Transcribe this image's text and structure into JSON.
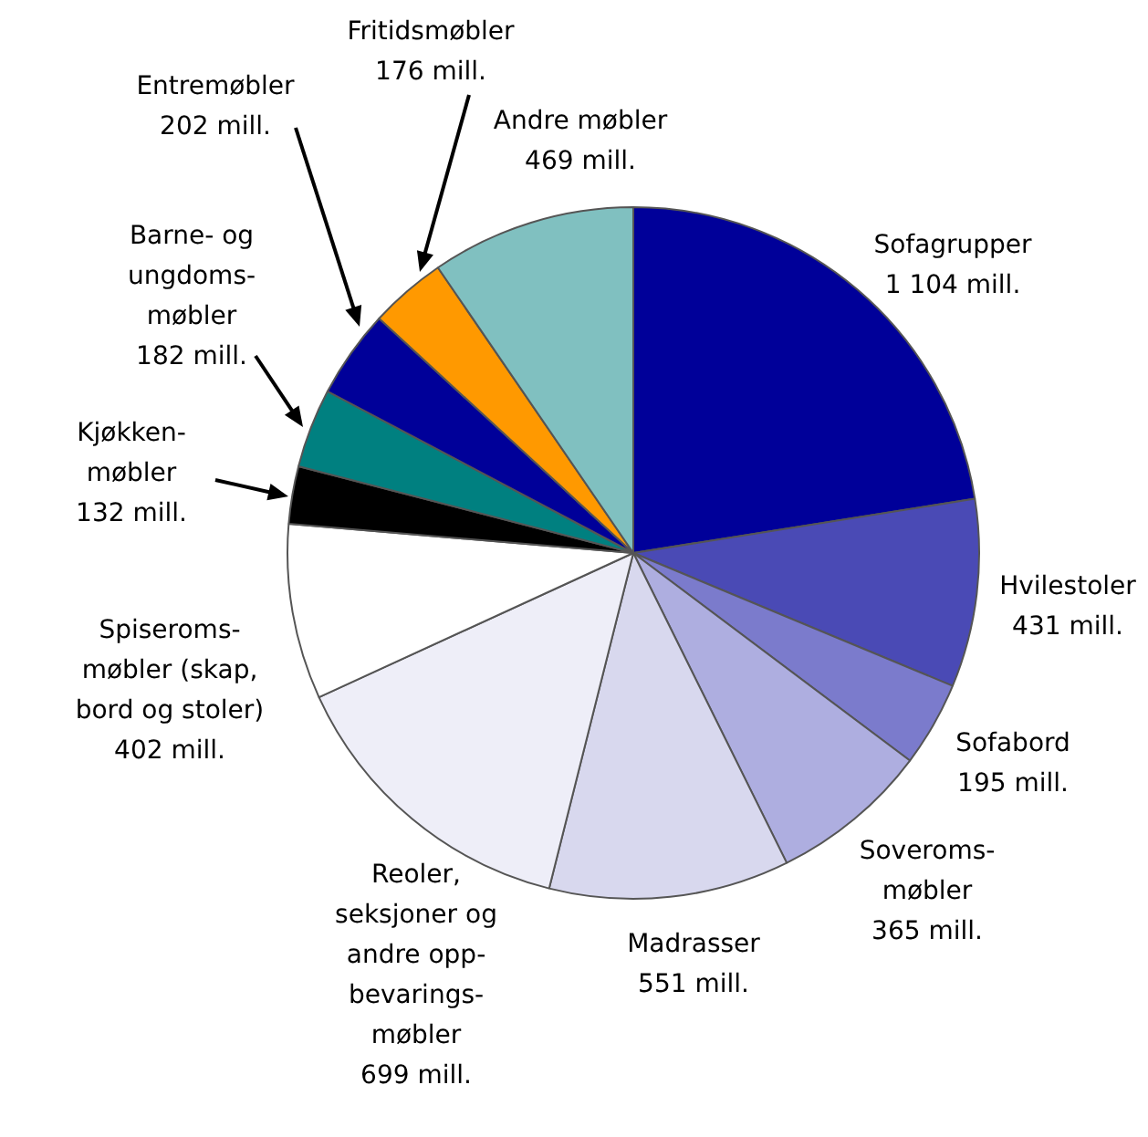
{
  "chart_data": {
    "type": "pie",
    "legend": false,
    "categories": [
      "Sofagrupper",
      "Hvilestoler",
      "Sofabord",
      "Soveroms-\nmøbler",
      "Madrasser",
      "Reoler,\nseksjoner og\nandre opp-\nbevarings-\nmøbler",
      "Spiseroms-\nmøbler (skap,\nbord og stoler)",
      "Kjøkken-\nmøbler",
      "Barne- og\nungdoms-\nmøbler",
      "Entremøbler",
      "Fritidsmøbler",
      "Andre møbler"
    ],
    "values": [
      1104,
      431,
      195,
      365,
      551,
      699,
      402,
      132,
      182,
      202,
      176,
      469
    ],
    "value_labels": [
      "1 104 mill.",
      "431 mill.",
      "195 mill.",
      "365 mill.",
      "551 mill.",
      "699 mill.",
      "402 mill.",
      "132 mill.",
      "182 mill.",
      "202 mill.",
      "176 mill.",
      "469 mill."
    ],
    "colors": [
      "#000099",
      "#4a4ab5",
      "#7b7bcc",
      "#aeaee0",
      "#d8d8ee",
      "#eeeef8",
      "#ffffff",
      "#000000",
      "#008080",
      "#000099",
      "#ff9900",
      "#80c0c0"
    ]
  }
}
